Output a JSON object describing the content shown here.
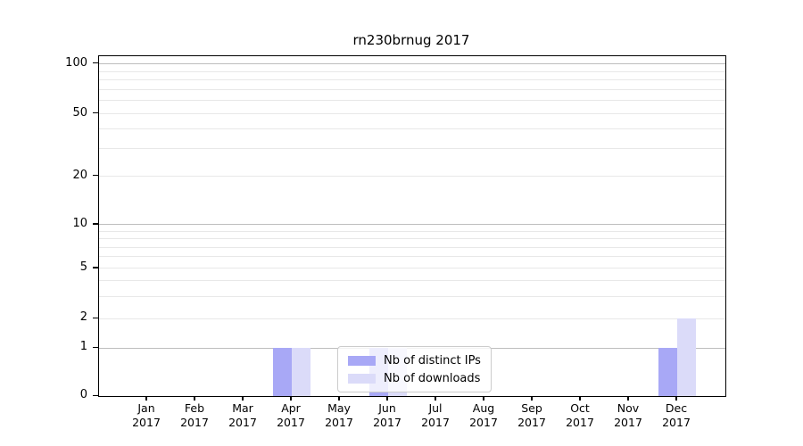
{
  "title": "rn230brnug 2017",
  "chart_data": {
    "type": "bar",
    "title": "rn230brnug 2017",
    "x_tick_months": [
      "Jan",
      "Feb",
      "Mar",
      "Apr",
      "May",
      "Jun",
      "Jul",
      "Aug",
      "Sep",
      "Oct",
      "Nov",
      "Dec"
    ],
    "x_tick_year": "2017",
    "categories": [
      "Jan 2017",
      "Feb 2017",
      "Mar 2017",
      "Apr 2017",
      "May 2017",
      "Jun 2017",
      "Jul 2017",
      "Aug 2017",
      "Sep 2017",
      "Oct 2017",
      "Nov 2017",
      "Dec 2017"
    ],
    "series": [
      {
        "name": "Nb of distinct IPs",
        "color": "#a8a8f6",
        "values": [
          0,
          0,
          0,
          1,
          0,
          1,
          0,
          0,
          0,
          0,
          0,
          1
        ]
      },
      {
        "name": "Nb of downloads",
        "color": "#dbdbf9",
        "values": [
          0,
          0,
          0,
          1,
          0,
          1,
          0,
          0,
          0,
          0,
          0,
          2
        ]
      }
    ],
    "yscale": "symlog",
    "ylim": [
      0,
      112
    ],
    "yticks_labeled": [
      0,
      1,
      2,
      5,
      10,
      20,
      50,
      100
    ],
    "yticks_major": [
      1,
      10,
      100
    ],
    "yticks_minor": [
      3,
      4,
      6,
      7,
      8,
      9,
      30,
      40,
      60,
      70,
      80,
      90
    ],
    "grid": "horizontal",
    "legend_position": "lower center"
  }
}
